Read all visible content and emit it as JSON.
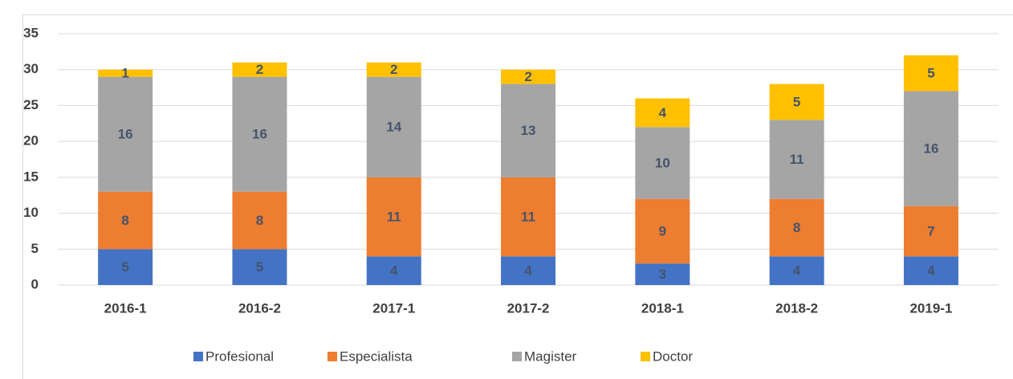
{
  "chart_data": {
    "type": "stacked_bar",
    "categories": [
      "2016-1",
      "2016-2",
      "2017-1",
      "2017-2",
      "2018-1",
      "2018-2",
      "2019-1"
    ],
    "series": [
      {
        "name": "Profesional",
        "color": "#4472c4",
        "values": [
          5,
          5,
          4,
          4,
          3,
          4,
          4
        ]
      },
      {
        "name": "Especialista",
        "color": "#ed7d31",
        "values": [
          8,
          8,
          11,
          11,
          9,
          8,
          7
        ]
      },
      {
        "name": "Magister",
        "color": "#a5a5a5",
        "values": [
          16,
          16,
          14,
          13,
          10,
          11,
          16
        ]
      },
      {
        "name": "Doctor",
        "color": "#ffc000",
        "values": [
          1,
          2,
          2,
          2,
          4,
          5,
          5
        ]
      }
    ],
    "ylim": [
      0,
      35
    ],
    "yticks": [
      0,
      5,
      10,
      15,
      20,
      25,
      30,
      35
    ],
    "grid": true,
    "legend": "bottom"
  }
}
